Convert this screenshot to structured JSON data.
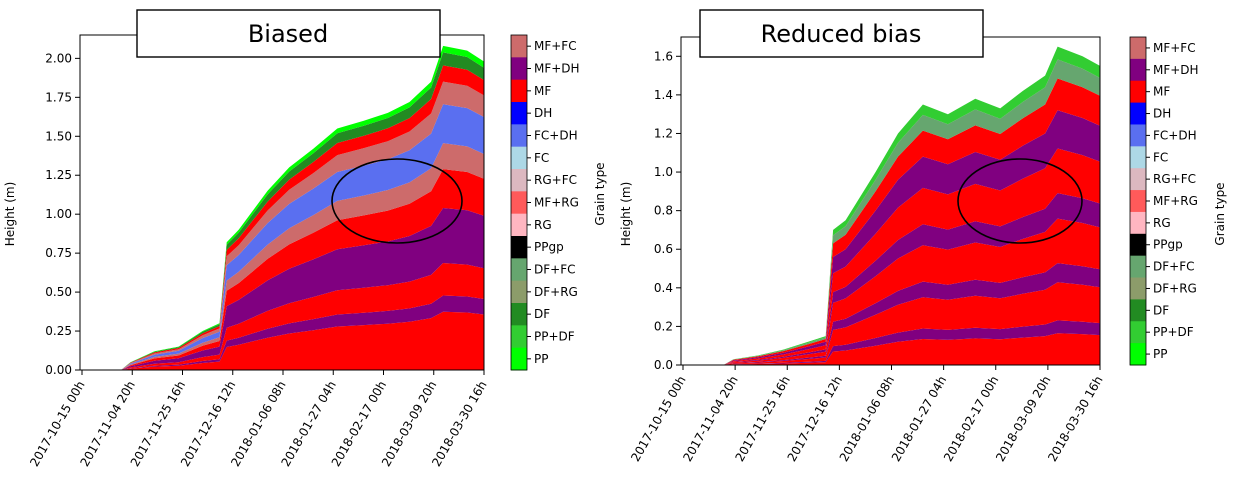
{
  "chart_data": [
    {
      "type": "area",
      "title": "Biased",
      "xlabel": "",
      "ylabel": "Height (m)",
      "colorbar_label": "Grain type",
      "x_tick_labels": [
        "2017-10-15 00h",
        "2017-11-04 20h",
        "2017-11-25 16h",
        "2017-12-16 12h",
        "2018-01-06 08h",
        "2018-01-27 04h",
        "2018-02-17 00h",
        "2018-03-09 20h",
        "2018-03-30 16h"
      ],
      "y_ticks": [
        0.0,
        0.25,
        0.5,
        0.75,
        1.0,
        1.25,
        1.5,
        1.75,
        2.0
      ],
      "y_tick_labels": [
        "0.00",
        "0.25",
        "0.50",
        "0.75",
        "1.00",
        "1.25",
        "1.50",
        "1.75",
        "2.00"
      ],
      "ylim": [
        0,
        2.15
      ],
      "snow_height_series": {
        "name": "",
        "x": [
          "2017-10-15",
          "2017-11-01",
          "2017-11-05",
          "2017-11-15",
          "2017-11-25",
          "2017-12-05",
          "2017-12-12",
          "2017-12-15",
          "2017-12-20",
          "2018-01-01",
          "2018-01-10",
          "2018-01-20",
          "2018-01-30",
          "2018-02-10",
          "2018-02-20",
          "2018-03-01",
          "2018-03-10",
          "2018-03-15",
          "2018-03-25",
          "2018-04-01"
        ],
        "values": [
          0,
          0,
          0.05,
          0.12,
          0.15,
          0.25,
          0.3,
          0.82,
          0.9,
          1.15,
          1.3,
          1.42,
          1.55,
          1.6,
          1.65,
          1.72,
          1.85,
          2.08,
          2.05,
          1.98
        ]
      },
      "highlight": "ellipse marking the layer around 1.0–1.25 m between late January and early March"
    },
    {
      "type": "area",
      "title": "Reduced bias",
      "xlabel": "",
      "ylabel": "Height (m)",
      "colorbar_label": "Grain type",
      "x_tick_labels": [
        "2017-10-15 00h",
        "2017-11-04 20h",
        "2017-11-25 16h",
        "2017-12-16 12h",
        "2018-01-06 08h",
        "2018-01-27 04h",
        "2018-02-17 00h",
        "2018-03-09 20h",
        "2018-03-30 16h"
      ],
      "y_ticks": [
        0.0,
        0.2,
        0.4,
        0.6,
        0.8,
        1.0,
        1.2,
        1.4,
        1.6
      ],
      "y_tick_labels": [
        "0.0",
        "0.2",
        "0.4",
        "0.6",
        "0.8",
        "1.0",
        "1.2",
        "1.4",
        "1.6"
      ],
      "ylim": [
        0,
        1.7
      ],
      "snow_height_series": {
        "name": "",
        "x": [
          "2017-10-15",
          "2017-11-01",
          "2017-11-05",
          "2017-11-15",
          "2017-11-25",
          "2017-12-05",
          "2017-12-12",
          "2017-12-15",
          "2017-12-20",
          "2018-01-01",
          "2018-01-10",
          "2018-01-20",
          "2018-01-30",
          "2018-02-10",
          "2018-02-20",
          "2018-03-01",
          "2018-03-10",
          "2018-03-15",
          "2018-03-25",
          "2018-04-01"
        ],
        "values": [
          0,
          0,
          0.03,
          0.05,
          0.08,
          0.12,
          0.15,
          0.7,
          0.75,
          1.0,
          1.2,
          1.35,
          1.3,
          1.38,
          1.33,
          1.42,
          1.5,
          1.65,
          1.6,
          1.55
        ]
      },
      "highlight": "ellipse marking the layer around 0.7–1.05 m between late January and early March"
    }
  ],
  "legend": {
    "title": "Grain type",
    "entries": [
      {
        "label": "MF+FC",
        "color": "#cd6b6b"
      },
      {
        "label": "MF+DH",
        "color": "#800080"
      },
      {
        "label": "MF",
        "color": "#ff0000"
      },
      {
        "label": "DH",
        "color": "#0000ff"
      },
      {
        "label": "FC+DH",
        "color": "#5a6ff0"
      },
      {
        "label": "FC",
        "color": "#add8e6"
      },
      {
        "label": "RG+FC",
        "color": "#dcb8c0"
      },
      {
        "label": "MF+RG",
        "color": "#ff5a5a"
      },
      {
        "label": "RG",
        "color": "#ffb6c1"
      },
      {
        "label": "PPgp",
        "color": "#000000"
      },
      {
        "label": "DF+FC",
        "color": "#66a66f"
      },
      {
        "label": "DF+RG",
        "color": "#8c9c6a"
      },
      {
        "label": "DF",
        "color": "#228b22"
      },
      {
        "label": "PP+DF",
        "color": "#32cd32"
      },
      {
        "label": "PP",
        "color": "#00ff00"
      }
    ]
  }
}
